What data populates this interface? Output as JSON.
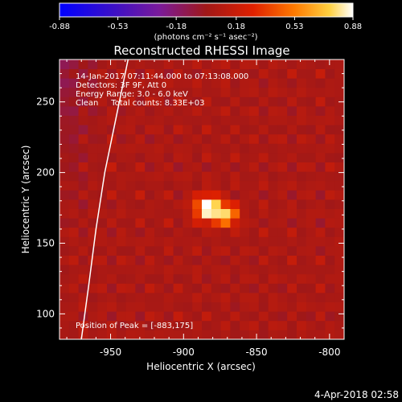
{
  "chart_data": {
    "type": "heatmap",
    "title": "Reconstructed RHESSI Image",
    "xlabel": "Heliocentric X (arcsec)",
    "ylabel": "Heliocentric Y (arcsec)",
    "xlim": [
      -985,
      -790
    ],
    "ylim": [
      82,
      280
    ],
    "x_ticks": [
      -950,
      -900,
      -850,
      -800
    ],
    "x_tick_labels": [
      "-950",
      "-900",
      "-850",
      "-800"
    ],
    "y_ticks": [
      100,
      150,
      200,
      250
    ],
    "y_tick_labels": [
      "100",
      "150",
      "200",
      "250"
    ],
    "colorbar": {
      "min": -0.88,
      "max": 0.88,
      "tick_values": [
        -0.88,
        -0.53,
        -0.18,
        0.18,
        0.53,
        0.88
      ],
      "tick_labels": [
        "-0.88",
        "-0.53",
        "-0.18",
        "0.18",
        "0.53",
        "0.88"
      ],
      "unit_label": "(photons cm⁻² s⁻¹ asec⁻²)"
    },
    "annotations": [
      "14-Jan-2017 07:11:44.000 to 07:13:08.000",
      "Detectors: 3F 9F, Att 0",
      "Energy Range: 3.0 - 6.0 keV",
      "Clean     Total counts: 8.33E+03"
    ],
    "peak_label": "Position of Peak = [-883,175]",
    "peak": [
      -883,
      175
    ],
    "peak_value": 0.88,
    "secondary_source": [
      -870,
      170
    ],
    "limb_curve": [
      [
        -970,
        82
      ],
      [
        -965,
        120
      ],
      [
        -960,
        160
      ],
      [
        -954,
        200
      ],
      [
        -946,
        240
      ],
      [
        -938,
        280
      ]
    ],
    "grid": false
  },
  "timestamp": "4-Apr-2018 02:58"
}
